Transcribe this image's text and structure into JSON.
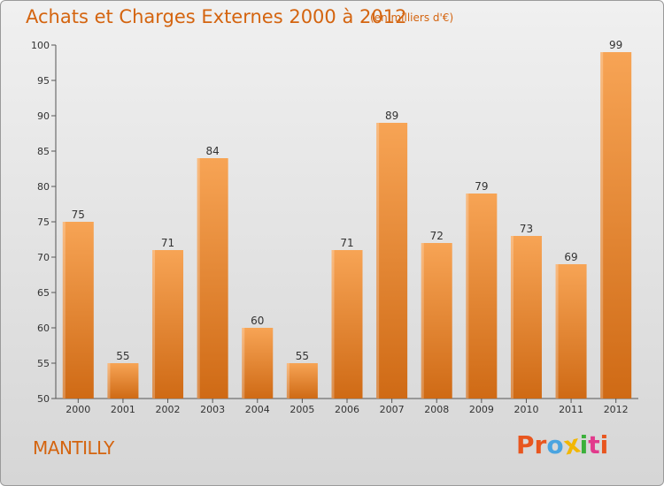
{
  "header": {
    "title": "Achats et Charges Externes 2000 à 2012",
    "unit": "(en milliers d'€)"
  },
  "footer": {
    "location": "MANTILLY",
    "logo": [
      "P",
      "r",
      "o",
      "x",
      "i",
      "t",
      "i"
    ]
  },
  "colors": {
    "title": "#d4640f",
    "bar_top": "#f7a455",
    "bar_bottom": "#cf6a15",
    "logo": [
      "#e8561f",
      "#e8561f",
      "#4aa4e0",
      "#f2b705",
      "#3bb03b",
      "#e23a8c",
      "#e8561f"
    ]
  },
  "chart_data": {
    "type": "bar",
    "title": "Achats et Charges Externes 2000 à 2012",
    "subtitle": "(en milliers d'€)",
    "categories": [
      "2000",
      "2001",
      "2002",
      "2003",
      "2004",
      "2005",
      "2006",
      "2007",
      "2008",
      "2009",
      "2010",
      "2011",
      "2012"
    ],
    "values": [
      75,
      55,
      71,
      84,
      60,
      55,
      71,
      89,
      72,
      79,
      73,
      69,
      99
    ],
    "ylim": [
      50,
      100
    ],
    "yticks": [
      50,
      55,
      60,
      65,
      70,
      75,
      80,
      85,
      90,
      95,
      100
    ],
    "grid": false,
    "data_labels": true
  }
}
